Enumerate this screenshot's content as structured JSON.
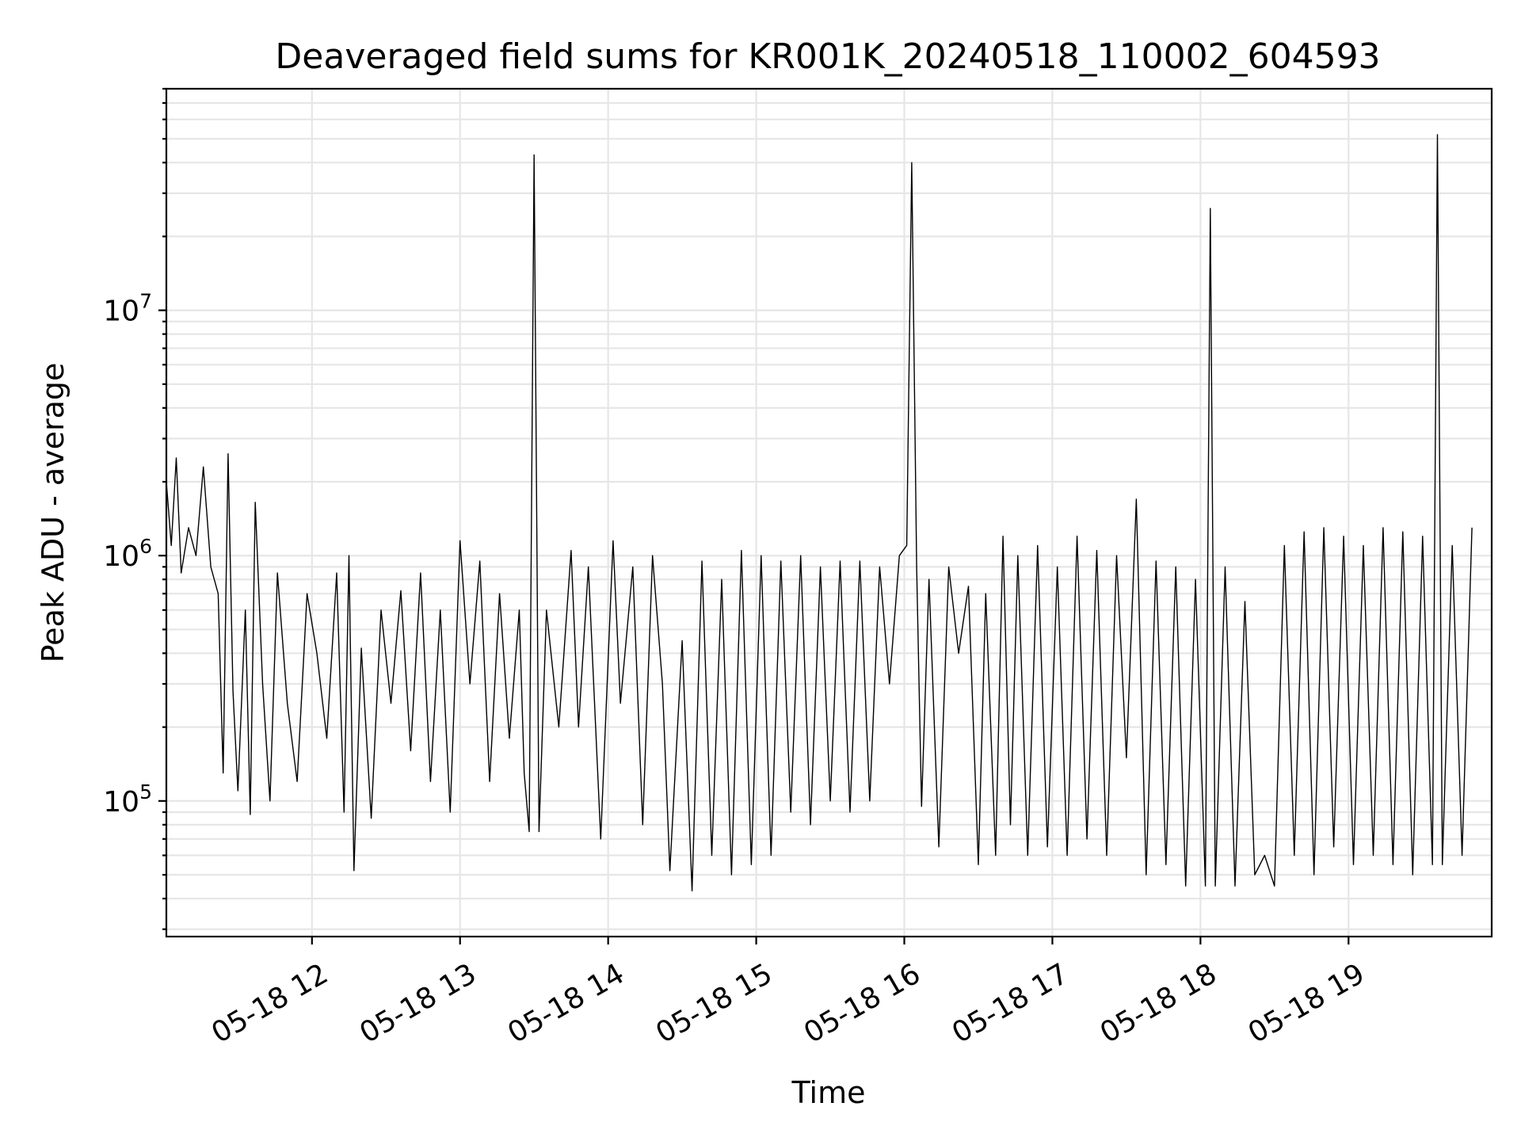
{
  "chart_data": {
    "type": "line",
    "title": "Deaveraged field sums for KR001K_20240518_110002_604593",
    "xlabel": "Time",
    "ylabel": "Peak ADU - average",
    "yscale": "log",
    "ylim": [
      28000,
      80000000
    ],
    "xlim": [
      "05-18 11:01",
      "05-18 19:58"
    ],
    "x_ticks": [
      "05-18 12",
      "05-18 13",
      "05-18 14",
      "05-18 15",
      "05-18 16",
      "05-18 17",
      "05-18 18",
      "05-18 19"
    ],
    "y_ticks": [
      {
        "base": "10",
        "exp": "5",
        "value": 100000
      },
      {
        "base": "10",
        "exp": "6",
        "value": 1000000
      },
      {
        "base": "10",
        "exp": "7",
        "value": 10000000
      }
    ],
    "grid": true,
    "legend": "none",
    "line_color": "#000000",
    "series": [
      {
        "values": [
          [
            "05-18 11:01",
            2000000
          ],
          [
            "05-18 11:03",
            1100000
          ],
          [
            "05-18 11:05",
            2500000
          ],
          [
            "05-18 11:07",
            850000
          ],
          [
            "05-18 11:10",
            1300000
          ],
          [
            "05-18 11:13",
            1000000
          ],
          [
            "05-18 11:16",
            2300000
          ],
          [
            "05-18 11:19",
            900000
          ],
          [
            "05-18 11:22",
            700000
          ],
          [
            "05-18 11:24",
            130000
          ],
          [
            "05-18 11:26",
            2600000
          ],
          [
            "05-18 11:28",
            280000
          ],
          [
            "05-18 11:30",
            110000
          ],
          [
            "05-18 11:33",
            600000
          ],
          [
            "05-18 11:35",
            88000
          ],
          [
            "05-18 11:37",
            1650000
          ],
          [
            "05-18 11:40",
            300000
          ],
          [
            "05-18 11:43",
            100000
          ],
          [
            "05-18 11:46",
            850000
          ],
          [
            "05-18 11:50",
            250000
          ],
          [
            "05-18 11:54",
            120000
          ],
          [
            "05-18 11:58",
            700000
          ],
          [
            "05-18 12:02",
            400000
          ],
          [
            "05-18 12:06",
            180000
          ],
          [
            "05-18 12:10",
            850000
          ],
          [
            "05-18 12:13",
            90000
          ],
          [
            "05-18 12:15",
            1000000
          ],
          [
            "05-18 12:17",
            52000
          ],
          [
            "05-18 12:20",
            420000
          ],
          [
            "05-18 12:24",
            85000
          ],
          [
            "05-18 12:28",
            600000
          ],
          [
            "05-18 12:32",
            250000
          ],
          [
            "05-18 12:36",
            720000
          ],
          [
            "05-18 12:40",
            160000
          ],
          [
            "05-18 12:44",
            850000
          ],
          [
            "05-18 12:48",
            120000
          ],
          [
            "05-18 12:52",
            600000
          ],
          [
            "05-18 12:56",
            90000
          ],
          [
            "05-18 13:00",
            1150000
          ],
          [
            "05-18 13:04",
            300000
          ],
          [
            "05-18 13:08",
            950000
          ],
          [
            "05-18 13:12",
            120000
          ],
          [
            "05-18 13:16",
            700000
          ],
          [
            "05-18 13:20",
            180000
          ],
          [
            "05-18 13:24",
            600000
          ],
          [
            "05-18 13:26",
            130000
          ],
          [
            "05-18 13:28",
            75000
          ],
          [
            "05-18 13:30",
            43000000
          ],
          [
            "05-18 13:32",
            75000
          ],
          [
            "05-18 13:35",
            600000
          ],
          [
            "05-18 13:40",
            200000
          ],
          [
            "05-18 13:45",
            1050000
          ],
          [
            "05-18 13:48",
            200000
          ],
          [
            "05-18 13:52",
            900000
          ],
          [
            "05-18 13:57",
            70000
          ],
          [
            "05-18 14:02",
            1150000
          ],
          [
            "05-18 14:05",
            250000
          ],
          [
            "05-18 14:10",
            900000
          ],
          [
            "05-18 14:14",
            80000
          ],
          [
            "05-18 14:18",
            1000000
          ],
          [
            "05-18 14:22",
            300000
          ],
          [
            "05-18 14:25",
            52000
          ],
          [
            "05-18 14:30",
            450000
          ],
          [
            "05-18 14:34",
            43000
          ],
          [
            "05-18 14:38",
            950000
          ],
          [
            "05-18 14:42",
            60000
          ],
          [
            "05-18 14:46",
            800000
          ],
          [
            "05-18 14:50",
            50000
          ],
          [
            "05-18 14:54",
            1050000
          ],
          [
            "05-18 14:58",
            55000
          ],
          [
            "05-18 15:02",
            1000000
          ],
          [
            "05-18 15:06",
            60000
          ],
          [
            "05-18 15:10",
            950000
          ],
          [
            "05-18 15:14",
            90000
          ],
          [
            "05-18 15:18",
            1000000
          ],
          [
            "05-18 15:22",
            80000
          ],
          [
            "05-18 15:26",
            900000
          ],
          [
            "05-18 15:30",
            100000
          ],
          [
            "05-18 15:34",
            950000
          ],
          [
            "05-18 15:38",
            90000
          ],
          [
            "05-18 15:42",
            950000
          ],
          [
            "05-18 15:46",
            100000
          ],
          [
            "05-18 15:50",
            900000
          ],
          [
            "05-18 15:54",
            300000
          ],
          [
            "05-18 15:58",
            1000000
          ],
          [
            "05-18 16:01",
            1100000
          ],
          [
            "05-18 16:03",
            40000000
          ],
          [
            "05-18 16:05",
            900000
          ],
          [
            "05-18 16:07",
            95000
          ],
          [
            "05-18 16:10",
            800000
          ],
          [
            "05-18 16:14",
            65000
          ],
          [
            "05-18 16:18",
            900000
          ],
          [
            "05-18 16:22",
            400000
          ],
          [
            "05-18 16:26",
            750000
          ],
          [
            "05-18 16:30",
            55000
          ],
          [
            "05-18 16:33",
            700000
          ],
          [
            "05-18 16:37",
            60000
          ],
          [
            "05-18 16:40",
            1200000
          ],
          [
            "05-18 16:43",
            80000
          ],
          [
            "05-18 16:46",
            1000000
          ],
          [
            "05-18 16:50",
            60000
          ],
          [
            "05-18 16:54",
            1100000
          ],
          [
            "05-18 16:58",
            65000
          ],
          [
            "05-18 17:02",
            900000
          ],
          [
            "05-18 17:06",
            60000
          ],
          [
            "05-18 17:10",
            1200000
          ],
          [
            "05-18 17:14",
            70000
          ],
          [
            "05-18 17:18",
            1050000
          ],
          [
            "05-18 17:22",
            60000
          ],
          [
            "05-18 17:26",
            1000000
          ],
          [
            "05-18 17:30",
            150000
          ],
          [
            "05-18 17:34",
            1700000
          ],
          [
            "05-18 17:38",
            50000
          ],
          [
            "05-18 17:42",
            950000
          ],
          [
            "05-18 17:46",
            55000
          ],
          [
            "05-18 17:50",
            900000
          ],
          [
            "05-18 17:54",
            45000
          ],
          [
            "05-18 17:58",
            800000
          ],
          [
            "05-18 18:02",
            45000
          ],
          [
            "05-18 18:04",
            26000000
          ],
          [
            "05-18 18:06",
            45000
          ],
          [
            "05-18 18:10",
            900000
          ],
          [
            "05-18 18:14",
            45000
          ],
          [
            "05-18 18:18",
            650000
          ],
          [
            "05-18 18:22",
            50000
          ],
          [
            "05-18 18:26",
            60000
          ],
          [
            "05-18 18:30",
            45000
          ],
          [
            "05-18 18:34",
            1100000
          ],
          [
            "05-18 18:38",
            60000
          ],
          [
            "05-18 18:42",
            1250000
          ],
          [
            "05-18 18:46",
            50000
          ],
          [
            "05-18 18:50",
            1300000
          ],
          [
            "05-18 18:54",
            65000
          ],
          [
            "05-18 18:58",
            1200000
          ],
          [
            "05-18 19:02",
            55000
          ],
          [
            "05-18 19:06",
            1100000
          ],
          [
            "05-18 19:10",
            60000
          ],
          [
            "05-18 19:14",
            1300000
          ],
          [
            "05-18 19:18",
            55000
          ],
          [
            "05-18 19:22",
            1250000
          ],
          [
            "05-18 19:26",
            50000
          ],
          [
            "05-18 19:30",
            1200000
          ],
          [
            "05-18 19:34",
            55000
          ],
          [
            "05-18 19:36",
            52000000
          ],
          [
            "05-18 19:38",
            55000
          ],
          [
            "05-18 19:42",
            1100000
          ],
          [
            "05-18 19:46",
            60000
          ],
          [
            "05-18 19:50",
            1300000
          ]
        ]
      }
    ]
  }
}
